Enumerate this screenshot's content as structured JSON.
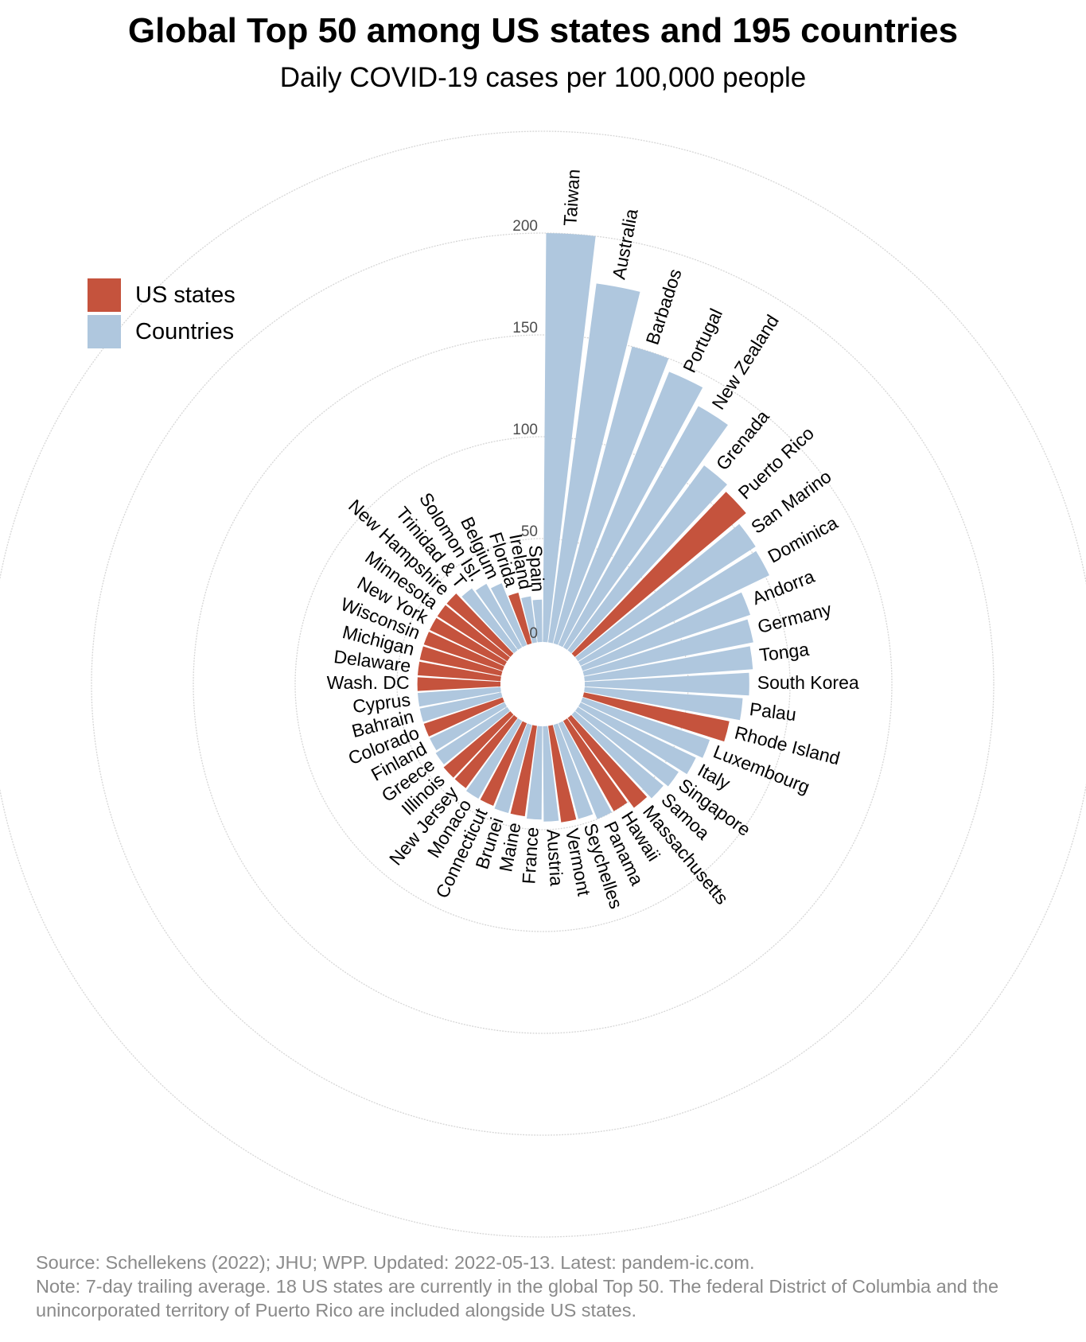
{
  "title": "Global Top 50 among US states and 195 countries",
  "subtitle": "Daily COVID-19 cases per 100,000 people",
  "legend": [
    {
      "label": "US states",
      "color": "#c5533d"
    },
    {
      "label": "Countries",
      "color": "#afc7de"
    }
  ],
  "footer": {
    "source": "Source: Schellekens (2022); JHU; WPP. Updated: 2022-05-13. Latest: pandem-ic.com.",
    "note": "Note: 7-day trailing average. 18 US states are currently in the global Top 50. The federal District of Columbia and the unincorporated territory of Puerto Rico are included alongside US states."
  },
  "chart_data": {
    "type": "bar",
    "polar": true,
    "colors": {
      "us_state": "#c5533d",
      "country": "#afc7de",
      "grid": "#d6d6d6"
    },
    "rlim": [
      0,
      200
    ],
    "r_ticks": [
      0,
      50,
      100,
      150,
      200
    ],
    "grid_circles": [
      0,
      50,
      100,
      150,
      200,
      250
    ],
    "categories": [
      "Taiwan",
      "Australia",
      "Barbados",
      "Portugal",
      "New Zealand",
      "Grenada",
      "Puerto Rico",
      "San Marino",
      "Dominica",
      "Andorra",
      "Germany",
      "Tonga",
      "South Korea",
      "Palau",
      "Rhode Island",
      "Luxembourg",
      "Italy",
      "Singapore",
      "Samoa",
      "Massachusetts",
      "Hawaii",
      "Panama",
      "Seychelles",
      "Vermont",
      "Austria",
      "France",
      "Maine",
      "Brunei",
      "Connecticut",
      "Monaco",
      "New Jersey",
      "Illinois",
      "Greece",
      "Finland",
      "Colorado",
      "Bahrain",
      "Cyprus",
      "Wash. DC",
      "Delaware",
      "Michigan",
      "Wisconsin",
      "New York",
      "Minnesota",
      "New Hampshire",
      "Trinidad & T",
      "Solomon Isl.",
      "Belgium",
      "Florida",
      "Ireland",
      "Spain"
    ],
    "groups": [
      "Countries",
      "Countries",
      "Countries",
      "Countries",
      "Countries",
      "Countries",
      "US states",
      "Countries",
      "Countries",
      "Countries",
      "Countries",
      "Countries",
      "Countries",
      "Countries",
      "US states",
      "Countries",
      "Countries",
      "Countries",
      "Countries",
      "US states",
      "US states",
      "Countries",
      "Countries",
      "US states",
      "Countries",
      "Countries",
      "US states",
      "Countries",
      "US states",
      "Countries",
      "US states",
      "US states",
      "Countries",
      "Countries",
      "US states",
      "Countries",
      "Countries",
      "US states",
      "US states",
      "US states",
      "US states",
      "US states",
      "US states",
      "US states",
      "Countries",
      "Countries",
      "Countries",
      "US states",
      "Countries",
      "Countries"
    ],
    "values": [
      200,
      177,
      150,
      144,
      135,
      112,
      109,
      103,
      102,
      86,
      84,
      82,
      80,
      77,
      72,
      65,
      62,
      58,
      56,
      54,
      50,
      50,
      47,
      47,
      46,
      45,
      44,
      44,
      43,
      43,
      42,
      42,
      41,
      40,
      40,
      40,
      40,
      40,
      40,
      40,
      40,
      40,
      40,
      40,
      37,
      35,
      32,
      25,
      22,
      20
    ]
  }
}
